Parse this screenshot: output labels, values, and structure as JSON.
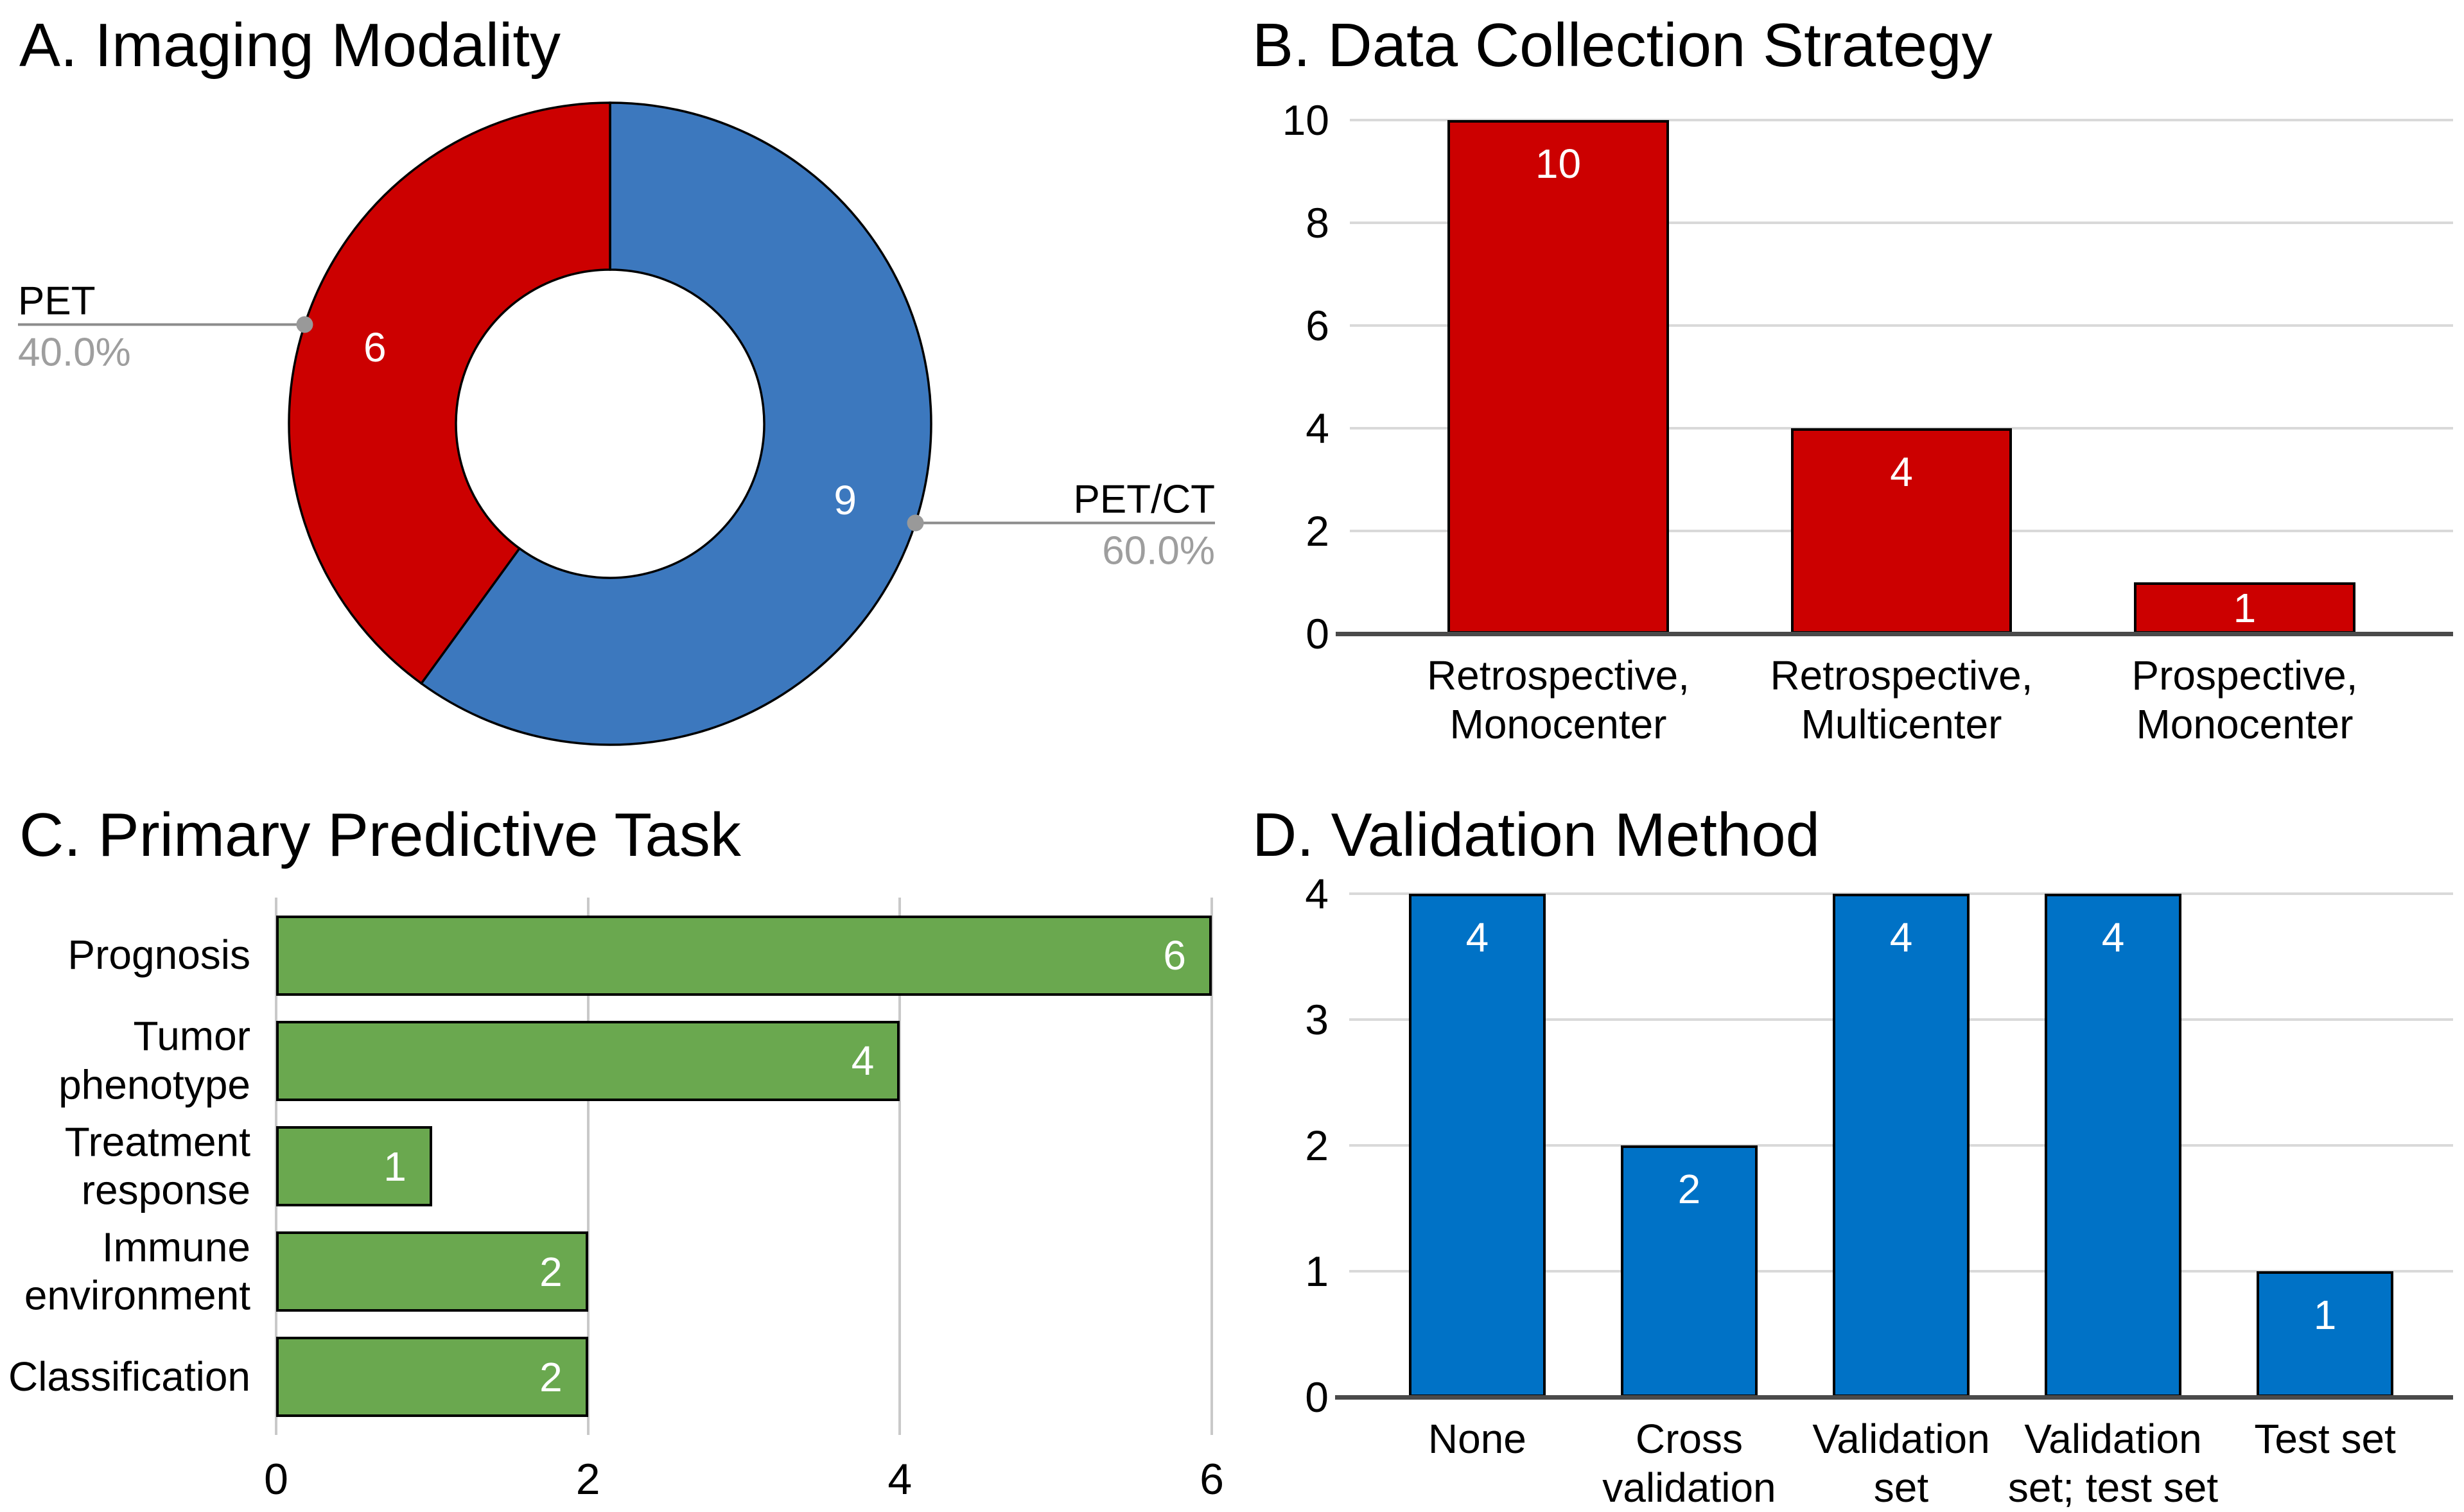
{
  "figure": {
    "background": "#ffffff",
    "text_color": "#000000",
    "grid_color": "#d9d9d9",
    "axis_color": "#4a4a4a",
    "callout_line_color": "#8c8c8c",
    "callout_percent_color": "#9e9e9e",
    "bar_value_label_color": "#ffffff"
  },
  "chart_data": [
    {
      "id": "A",
      "type": "pie",
      "donut": true,
      "title": "A. Imaging Modality",
      "start_angle_deg": 0,
      "total": 15,
      "slices": [
        {
          "label": "PET/CT",
          "value": 9,
          "percent": "60.0%",
          "color": "#3c78be",
          "callout_side": "right"
        },
        {
          "label": "PET",
          "value": 6,
          "percent": "40.0%",
          "color": "#cc0000",
          "callout_side": "left"
        }
      ]
    },
    {
      "id": "B",
      "type": "bar",
      "title": "B. Data Collection Strategy",
      "categories": [
        "Retrospective,\nMonocenter",
        "Retrospective,\nMulticenter",
        "Prospective,\nMonocenter"
      ],
      "values": [
        10,
        4,
        1
      ],
      "bar_color": "#cc0000",
      "ylim": [
        0,
        10
      ],
      "yticks": [
        0,
        2,
        4,
        6,
        8,
        10
      ],
      "grid": true,
      "legend": "none"
    },
    {
      "id": "C",
      "type": "bar-horizontal",
      "title": "C. Primary Predictive Task",
      "categories": [
        "Prognosis",
        "Tumor\nphenotype",
        "Treatment\nresponse",
        "Immune\nenvironment",
        "Classification"
      ],
      "values": [
        6,
        4,
        1,
        2,
        2
      ],
      "bar_color": "#6aa84f",
      "xlim": [
        0,
        6
      ],
      "xticks": [
        0,
        2,
        4,
        6
      ],
      "grid": true,
      "legend": "none"
    },
    {
      "id": "D",
      "type": "bar",
      "title": "D. Validation Method",
      "categories": [
        "None",
        "Cross\nvalidation",
        "Validation\nset",
        "Validation\nset; test set",
        "Test set"
      ],
      "values": [
        4,
        2,
        4,
        4,
        1
      ],
      "bar_color": "#0072c6",
      "ylim": [
        0,
        4
      ],
      "yticks": [
        0,
        1,
        2,
        3,
        4
      ],
      "grid": true,
      "legend": "none"
    }
  ]
}
